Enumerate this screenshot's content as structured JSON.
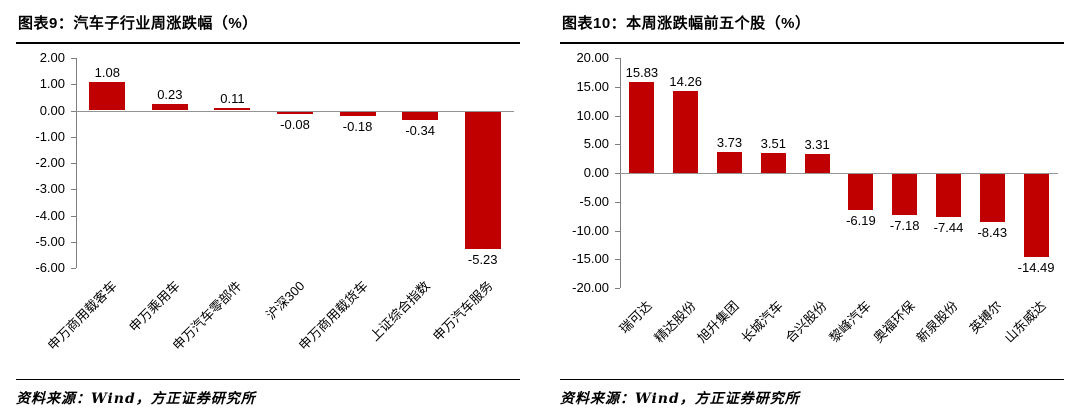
{
  "panels": [
    {
      "source": "资料来源：Wind，方正证券研究所"
    },
    {
      "source": "资料来源：Wind，方正证券研究所"
    }
  ],
  "chart_data": [
    {
      "type": "bar",
      "title": "图表9：汽车子行业周涨跌幅（%）",
      "categories": [
        "申万商用载客车",
        "申万乘用车",
        "申万汽车零部件",
        "沪深300",
        "申万商用载货车",
        "上证综合指数",
        "申万汽车服务"
      ],
      "values": [
        1.08,
        0.23,
        0.11,
        -0.08,
        -0.18,
        -0.34,
        -5.23
      ],
      "ylabel": "",
      "xlabel": "",
      "ylim": [
        -6,
        2
      ],
      "ytick_step": 1,
      "bar_color": "#c00000",
      "grid": false,
      "legend": false
    },
    {
      "type": "bar",
      "title": "图表10：本周涨跌幅前五个股（%）",
      "categories": [
        "瑞可达",
        "精达股份",
        "旭升集团",
        "长城汽车",
        "合兴股份",
        "黎峰汽车",
        "奥福环保",
        "新泉股份",
        "英搏尔",
        "山东威达"
      ],
      "values": [
        15.83,
        14.26,
        3.73,
        3.51,
        3.31,
        -6.19,
        -7.18,
        -7.44,
        -8.43,
        -14.49
      ],
      "ylabel": "",
      "xlabel": "",
      "ylim": [
        -20,
        20
      ],
      "ytick_step": 5,
      "bar_color": "#c00000",
      "grid": false,
      "legend": false
    }
  ]
}
